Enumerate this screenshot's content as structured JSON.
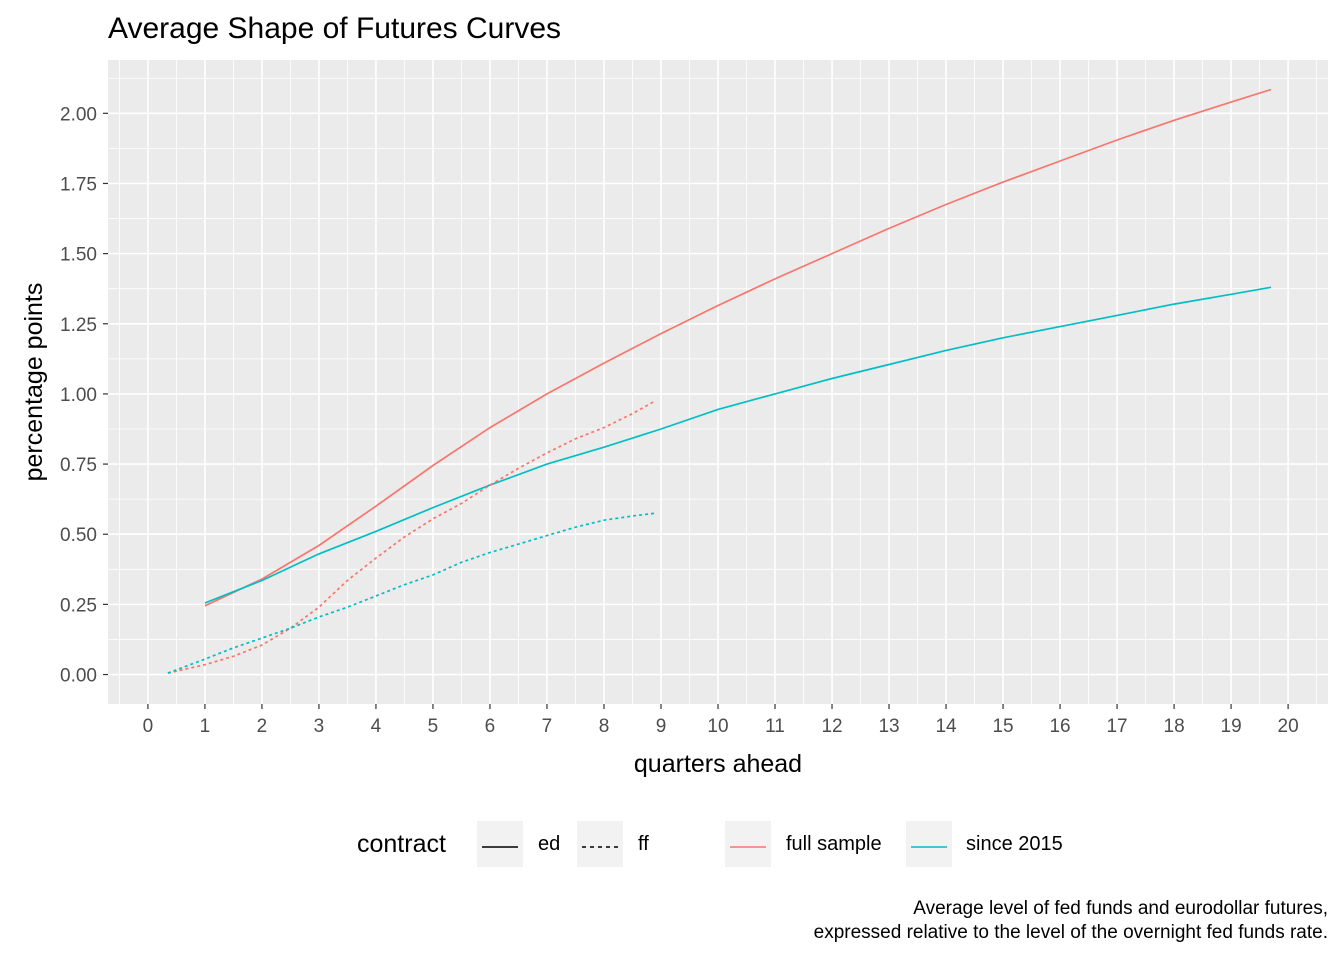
{
  "title": "Average Shape of Futures Curves",
  "caption": {
    "line1": "Average level of fed funds and eurodollar futures,",
    "line2": "expressed relative to the level of the overnight fed funds rate."
  },
  "chart_data": {
    "type": "line",
    "xlabel": "quarters ahead",
    "ylabel": "percentage points",
    "xlim": [
      -0.7,
      20.7
    ],
    "ylim": [
      -0.105,
      2.19
    ],
    "x_ticks": [
      0,
      1,
      2,
      3,
      4,
      5,
      6,
      7,
      8,
      9,
      10,
      11,
      12,
      13,
      14,
      15,
      16,
      17,
      18,
      19,
      20
    ],
    "y_ticks": [
      0.0,
      0.25,
      0.5,
      0.75,
      1.0,
      1.25,
      1.5,
      1.75,
      2.0
    ],
    "y_tick_labels": [
      "0.00",
      "0.25",
      "0.50",
      "0.75",
      "1.00",
      "1.25",
      "1.50",
      "1.75",
      "2.00"
    ],
    "grid": true,
    "legend_position": "bottom",
    "series": [
      {
        "contract": "ed",
        "sample": "full sample",
        "x": [
          1,
          2,
          3,
          4,
          5,
          6,
          7,
          8,
          9,
          10,
          11,
          12,
          13,
          14,
          15,
          16,
          17,
          18,
          19,
          19.7
        ],
        "y": [
          0.245,
          0.34,
          0.46,
          0.6,
          0.745,
          0.88,
          1.0,
          1.11,
          1.215,
          1.315,
          1.41,
          1.5,
          1.59,
          1.675,
          1.755,
          1.83,
          1.905,
          1.975,
          2.04,
          2.085
        ]
      },
      {
        "contract": "ed",
        "sample": "since 2015",
        "x": [
          1,
          2,
          3,
          4,
          5,
          6,
          7,
          8,
          9,
          10,
          11,
          12,
          13,
          14,
          15,
          16,
          17,
          18,
          19,
          19.7
        ],
        "y": [
          0.255,
          0.335,
          0.43,
          0.51,
          0.595,
          0.675,
          0.75,
          0.81,
          0.875,
          0.945,
          1.0,
          1.055,
          1.105,
          1.155,
          1.2,
          1.24,
          1.28,
          1.32,
          1.355,
          1.38
        ]
      },
      {
        "contract": "ff",
        "sample": "full sample",
        "x": [
          0.35,
          1,
          1.5,
          2,
          2.5,
          3,
          3.5,
          4,
          4.5,
          5,
          5.5,
          6,
          6.5,
          7,
          7.5,
          8,
          8.5,
          8.9
        ],
        "y": [
          0.005,
          0.035,
          0.065,
          0.105,
          0.165,
          0.24,
          0.335,
          0.415,
          0.49,
          0.555,
          0.61,
          0.675,
          0.735,
          0.79,
          0.84,
          0.88,
          0.93,
          0.975
        ]
      },
      {
        "contract": "ff",
        "sample": "since 2015",
        "x": [
          0.35,
          1,
          1.5,
          2,
          2.5,
          3,
          3.5,
          4,
          4.5,
          5,
          5.5,
          6,
          6.5,
          7,
          7.5,
          8,
          8.5,
          8.9
        ],
        "y": [
          0.005,
          0.055,
          0.095,
          0.13,
          0.165,
          0.205,
          0.24,
          0.28,
          0.32,
          0.355,
          0.4,
          0.435,
          0.465,
          0.495,
          0.525,
          0.55,
          0.565,
          0.575
        ]
      }
    ]
  },
  "legend": {
    "title": "contract",
    "linetype_entries": [
      {
        "label": "ed",
        "dash": "solid"
      },
      {
        "label": "ff",
        "dash": "dotted"
      }
    ],
    "color_entries": [
      {
        "label": "full sample",
        "color": "#F8766D"
      },
      {
        "label": "since 2015",
        "color": "#00BFC4"
      }
    ]
  },
  "colors": {
    "panel_background": "#EBEBEB",
    "grid": "#FFFFFF",
    "axis_text": "#4D4D4D",
    "full_sample": "#F8766D",
    "since_2015": "#00BFC4"
  }
}
